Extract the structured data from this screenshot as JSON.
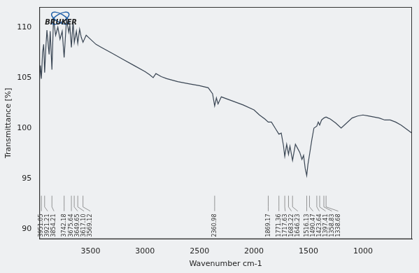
{
  "chart_data": {
    "type": "line",
    "logo_text": "BRUKER",
    "x_label": "Wavenumber cm-1",
    "y_label": "Transmittance [%]",
    "xlim": [
      3970,
      550
    ],
    "xticks": [
      3500,
      3000,
      2500,
      2000,
      1500,
      1000
    ],
    "ylim": [
      89,
      112
    ],
    "yticks": [
      90,
      95,
      100,
      105,
      110
    ],
    "grid": false,
    "color": "#3a4654",
    "x": [
      3970,
      3960,
      3951.05,
      3940,
      3930,
      3921,
      3910,
      3900,
      3880,
      3870,
      3854.21,
      3840,
      3820,
      3800,
      3780,
      3760,
      3742.18,
      3720,
      3700,
      3690,
      3675.64,
      3660,
      3649,
      3630,
      3617.1,
      3600,
      3585,
      3569.12,
      3540,
      3500,
      3450,
      3400,
      3300,
      3200,
      3100,
      3000,
      2960,
      2925,
      2900,
      2850,
      2800,
      2700,
      2600,
      2500,
      2420,
      2380,
      2360.98,
      2345,
      2330,
      2300,
      2200,
      2100,
      2000,
      1950,
      1900,
      1869.17,
      1840,
      1800,
      1771.36,
      1750,
      1730,
      1717.63,
      1700,
      1683.22,
      1670,
      1646.23,
      1620,
      1600,
      1580,
      1560,
      1545,
      1530,
      1516.13,
      1505,
      1490,
      1470,
      1450,
      1423.64,
      1410,
      1397.41,
      1380,
      1358.83,
      1338.68,
      1320,
      1300,
      1250,
      1200,
      1150,
      1100,
      1050,
      1000,
      950,
      900,
      850,
      800,
      750,
      700,
      650,
      600,
      550
    ],
    "values": [
      104.5,
      106.2,
      104.9,
      107.5,
      108.3,
      105.5,
      108.0,
      109.7,
      107.3,
      109.6,
      105.8,
      110.8,
      109.2,
      110.0,
      108.8,
      109.6,
      107.0,
      110.8,
      109.5,
      110.2,
      108.0,
      110.6,
      108.5,
      109.6,
      108.4,
      109.8,
      109.0,
      108.5,
      109.2,
      108.8,
      108.3,
      108.0,
      107.4,
      106.8,
      106.2,
      105.6,
      105.3,
      105.0,
      105.4,
      105.1,
      104.9,
      104.6,
      104.4,
      104.2,
      104.0,
      103.4,
      102.2,
      103.0,
      102.4,
      103.1,
      102.7,
      102.3,
      101.8,
      101.3,
      100.9,
      100.6,
      100.6,
      99.9,
      99.4,
      99.5,
      98.3,
      97.2,
      98.4,
      97.4,
      98.2,
      96.8,
      98.4,
      98.0,
      97.6,
      96.9,
      97.3,
      96.0,
      95.3,
      96.4,
      97.4,
      98.8,
      100.0,
      100.2,
      100.6,
      100.3,
      100.8,
      101.0,
      101.1,
      101.0,
      100.9,
      100.5,
      100.0,
      100.5,
      101.0,
      101.2,
      101.3,
      101.2,
      101.1,
      101.0,
      100.8,
      100.8,
      100.6,
      100.3,
      99.9,
      99.5
    ],
    "annotations": [
      {
        "x": 3951.05,
        "text": "3951.05"
      },
      {
        "x": 3921.21,
        "text": "3921.21"
      },
      {
        "x": 3854.21,
        "text": "3854.21"
      },
      {
        "x": 3742.18,
        "text": "3742.18"
      },
      {
        "x": 3675.64,
        "text": "3675.64"
      },
      {
        "x": 3649.65,
        "text": "3649.65"
      },
      {
        "x": 3617.1,
        "text": "3617.10"
      },
      {
        "x": 3569.12,
        "text": "3569.12"
      },
      {
        "x": 2360.98,
        "text": "2360.98"
      },
      {
        "x": 1869.17,
        "text": "1869.17"
      },
      {
        "x": 1771.36,
        "text": "1771.36"
      },
      {
        "x": 1717.63,
        "text": "1717.63"
      },
      {
        "x": 1683.22,
        "text": "1683.22"
      },
      {
        "x": 1646.23,
        "text": "1646.23"
      },
      {
        "x": 1516.13,
        "text": "1516.13"
      },
      {
        "x": 1490.47,
        "text": "1490.47"
      },
      {
        "x": 1423.64,
        "text": "1423.64"
      },
      {
        "x": 1397.41,
        "text": "1397.41"
      },
      {
        "x": 1358.83,
        "text": "1358.83"
      },
      {
        "x": 1338.68,
        "text": "1338.68"
      }
    ]
  }
}
